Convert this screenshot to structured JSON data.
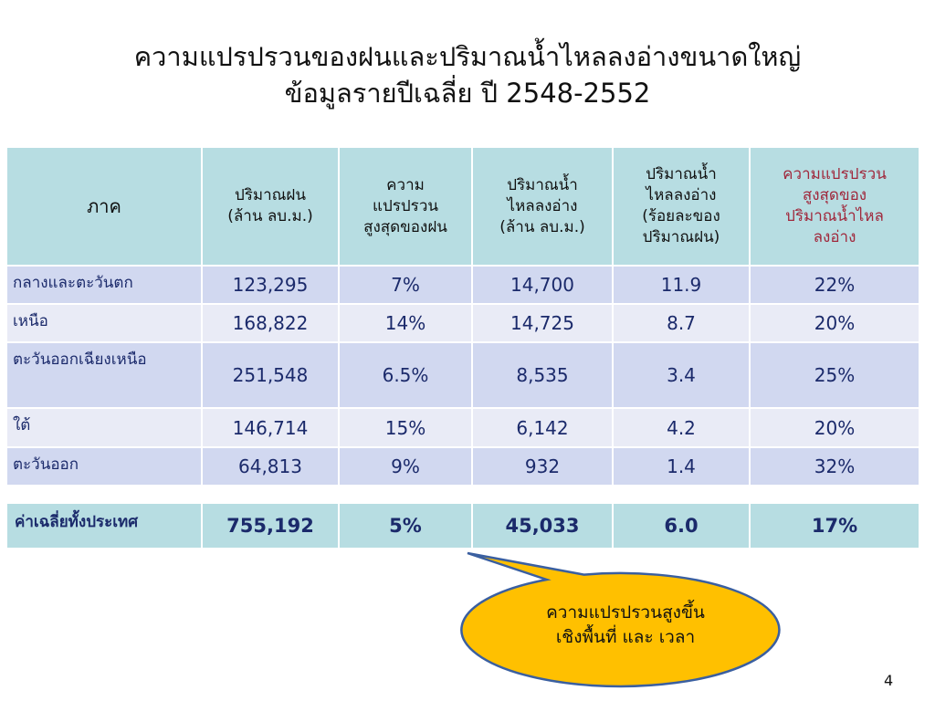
{
  "title": {
    "line1": "ความแปรปรวนของฝนและปริมาณน้ำไหลลงอ่างขนาดใหญ่",
    "line2": "ข้อมูลรายปีเฉลี่ย ปี 2548-2552"
  },
  "table": {
    "headers": {
      "region": "ภาค",
      "rain": [
        "ปริมาณฝน",
        "(ล้าน ลบ.ม.)"
      ],
      "rain_var": [
        "ความ",
        "แปรปรวน",
        "สูงสุดของฝน"
      ],
      "inflow": [
        "ปริมาณน้ำ",
        "ไหลลงอ่าง",
        "(ล้าน ลบ.ม.)"
      ],
      "inflow_pct": [
        "ปริมาณน้ำ",
        "ไหลลงอ่าง",
        "(ร้อยละของ",
        "ปริมาณฝน)"
      ],
      "inflow_var": [
        "ความแปรปรวน",
        "สูงสุดของ",
        "ปริมาณน้ำไหล",
        "ลงอ่าง"
      ]
    },
    "rows": [
      {
        "region": "กลางและตะวันตก",
        "rain": "123,295",
        "rain_var": "7%",
        "inflow": "14,700",
        "inflow_pct": "11.9",
        "inflow_var": "22%"
      },
      {
        "region": "เหนือ",
        "rain": "168,822",
        "rain_var": "14%",
        "inflow": "14,725",
        "inflow_pct": "8.7",
        "inflow_var": "20%"
      },
      {
        "region": "ตะวันออกเฉียงเหนือ",
        "rain": "251,548",
        "rain_var": "6.5%",
        "inflow": "8,535",
        "inflow_pct": "3.4",
        "inflow_var": "25%"
      },
      {
        "region": "ใต้",
        "rain": "146,714",
        "rain_var": "15%",
        "inflow": "6,142",
        "inflow_pct": "4.2",
        "inflow_var": "20%"
      },
      {
        "region": "ตะวันออก",
        "rain": "64,813",
        "rain_var": "9%",
        "inflow": "932",
        "inflow_pct": "1.4",
        "inflow_var": "32%"
      }
    ],
    "total": {
      "region": "ค่าเฉลี่ยทั้งประเทศ",
      "rain": "755,192",
      "rain_var": "5%",
      "inflow": "45,033",
      "inflow_pct": "6.0",
      "inflow_var": "17%"
    }
  },
  "callout": {
    "line1": "ความแปรปรวนสูงขึ้น",
    "line2": "เชิงพื้นที่ และ เวลา",
    "fill": "#ffc000",
    "stroke": "#3a5fa0"
  },
  "page_number": "4",
  "colors": {
    "header_bg": "#b7dde2",
    "row_odd": "#d1d8f0",
    "row_even": "#e9ebf6",
    "accent_text": "#a0283c",
    "data_text": "#1b2a6b"
  }
}
